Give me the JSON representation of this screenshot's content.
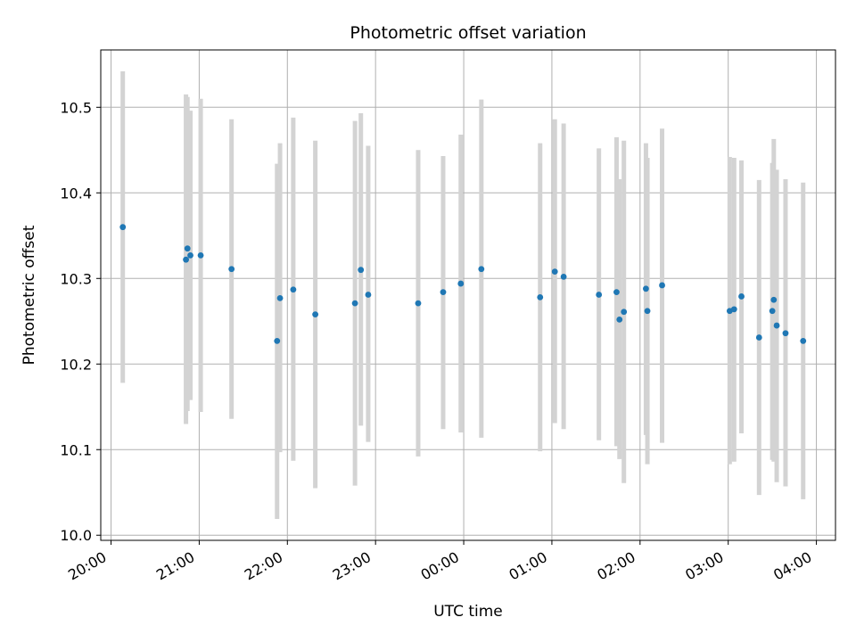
{
  "chart_data": {
    "type": "scatter",
    "title": "Photometric offset variation",
    "xlabel": "UTC time",
    "ylabel": "Photometric offset",
    "grid": true,
    "x_axis": {
      "type": "time",
      "range": [
        "2000-01-01T19:53:00",
        "2000-01-02T04:13:00"
      ],
      "ticks": [
        {
          "t": "2000-01-01T20:00:00",
          "label": "20:00"
        },
        {
          "t": "2000-01-01T21:00:00",
          "label": "21:00"
        },
        {
          "t": "2000-01-01T22:00:00",
          "label": "22:00"
        },
        {
          "t": "2000-01-01T23:00:00",
          "label": "23:00"
        },
        {
          "t": "2000-01-02T00:00:00",
          "label": "00:00"
        },
        {
          "t": "2000-01-02T01:00:00",
          "label": "01:00"
        },
        {
          "t": "2000-01-02T02:00:00",
          "label": "02:00"
        },
        {
          "t": "2000-01-02T03:00:00",
          "label": "03:00"
        },
        {
          "t": "2000-01-02T04:00:00",
          "label": "04:00"
        }
      ]
    },
    "y_axis": {
      "range": [
        9.994,
        10.567
      ],
      "ticks": [
        {
          "v": 10.0,
          "label": "10.0"
        },
        {
          "v": 10.1,
          "label": "10.1"
        },
        {
          "v": 10.2,
          "label": "10.2"
        },
        {
          "v": 10.3,
          "label": "10.3"
        },
        {
          "v": 10.4,
          "label": "10.4"
        },
        {
          "v": 10.5,
          "label": "10.5"
        }
      ]
    },
    "colors": {
      "marker": "#1f77b4",
      "errorbar": "#d3d3d3",
      "grid": "#b0b0b0"
    },
    "points": [
      {
        "t": "2000-01-01T20:08:00",
        "y": 10.36,
        "lo": 10.178,
        "hi": 10.542
      },
      {
        "t": "2000-01-01T20:51:00",
        "y": 10.322,
        "lo": 10.13,
        "hi": 10.515
      },
      {
        "t": "2000-01-01T20:52:00",
        "y": 10.335,
        "lo": 10.145,
        "hi": 10.512
      },
      {
        "t": "2000-01-01T20:54:00",
        "y": 10.327,
        "lo": 10.158,
        "hi": 10.496
      },
      {
        "t": "2000-01-01T21:01:00",
        "y": 10.327,
        "lo": 10.144,
        "hi": 10.51
      },
      {
        "t": "2000-01-01T21:22:00",
        "y": 10.311,
        "lo": 10.136,
        "hi": 10.486
      },
      {
        "t": "2000-01-01T21:53:00",
        "y": 10.227,
        "lo": 10.019,
        "hi": 10.434
      },
      {
        "t": "2000-01-01T21:55:00",
        "y": 10.277,
        "lo": 10.097,
        "hi": 10.458
      },
      {
        "t": "2000-01-01T22:04:00",
        "y": 10.287,
        "lo": 10.087,
        "hi": 10.488
      },
      {
        "t": "2000-01-01T22:19:00",
        "y": 10.258,
        "lo": 10.055,
        "hi": 10.461
      },
      {
        "t": "2000-01-01T22:46:00",
        "y": 10.271,
        "lo": 10.058,
        "hi": 10.484
      },
      {
        "t": "2000-01-01T22:50:00",
        "y": 10.31,
        "lo": 10.128,
        "hi": 10.493
      },
      {
        "t": "2000-01-01T22:55:00",
        "y": 10.281,
        "lo": 10.109,
        "hi": 10.455
      },
      {
        "t": "2000-01-01T23:29:00",
        "y": 10.271,
        "lo": 10.092,
        "hi": 10.45
      },
      {
        "t": "2000-01-01T23:46:00",
        "y": 10.284,
        "lo": 10.124,
        "hi": 10.443
      },
      {
        "t": "2000-01-01T23:58:00",
        "y": 10.294,
        "lo": 10.12,
        "hi": 10.468
      },
      {
        "t": "2000-01-02T00:12:00",
        "y": 10.311,
        "lo": 10.114,
        "hi": 10.509
      },
      {
        "t": "2000-01-02T00:52:00",
        "y": 10.278,
        "lo": 10.098,
        "hi": 10.458
      },
      {
        "t": "2000-01-02T01:02:00",
        "y": 10.308,
        "lo": 10.131,
        "hi": 10.486
      },
      {
        "t": "2000-01-02T01:08:00",
        "y": 10.302,
        "lo": 10.124,
        "hi": 10.481
      },
      {
        "t": "2000-01-02T01:32:00",
        "y": 10.281,
        "lo": 10.111,
        "hi": 10.452
      },
      {
        "t": "2000-01-02T01:44:00",
        "y": 10.284,
        "lo": 10.104,
        "hi": 10.465
      },
      {
        "t": "2000-01-02T01:46:00",
        "y": 10.252,
        "lo": 10.089,
        "hi": 10.416
      },
      {
        "t": "2000-01-02T01:49:00",
        "y": 10.261,
        "lo": 10.061,
        "hi": 10.461
      },
      {
        "t": "2000-01-02T02:04:00",
        "y": 10.288,
        "lo": 10.117,
        "hi": 10.458
      },
      {
        "t": "2000-01-02T02:05:00",
        "y": 10.262,
        "lo": 10.083,
        "hi": 10.441
      },
      {
        "t": "2000-01-02T02:15:00",
        "y": 10.292,
        "lo": 10.108,
        "hi": 10.475
      },
      {
        "t": "2000-01-02T03:01:00",
        "y": 10.262,
        "lo": 10.083,
        "hi": 10.442
      },
      {
        "t": "2000-01-02T03:04:00",
        "y": 10.264,
        "lo": 10.086,
        "hi": 10.441
      },
      {
        "t": "2000-01-02T03:09:00",
        "y": 10.279,
        "lo": 10.119,
        "hi": 10.438
      },
      {
        "t": "2000-01-02T03:21:00",
        "y": 10.231,
        "lo": 10.047,
        "hi": 10.415
      },
      {
        "t": "2000-01-02T03:30:00",
        "y": 10.262,
        "lo": 10.088,
        "hi": 10.435
      },
      {
        "t": "2000-01-02T03:31:00",
        "y": 10.275,
        "lo": 10.086,
        "hi": 10.463
      },
      {
        "t": "2000-01-02T03:33:00",
        "y": 10.245,
        "lo": 10.062,
        "hi": 10.427
      },
      {
        "t": "2000-01-02T03:39:00",
        "y": 10.236,
        "lo": 10.057,
        "hi": 10.416
      },
      {
        "t": "2000-01-02T03:51:00",
        "y": 10.227,
        "lo": 10.042,
        "hi": 10.412
      }
    ]
  }
}
